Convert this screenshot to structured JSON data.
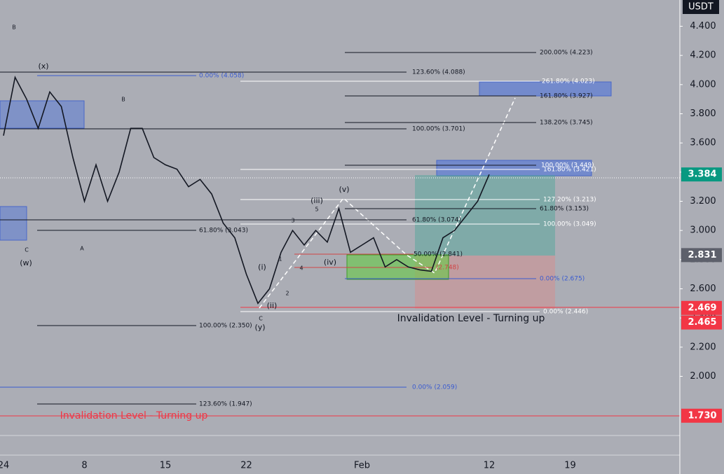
{
  "chart_data": {
    "type": "line",
    "currency": "USDT",
    "categories": [
      "24",
      null,
      null,
      null,
      null,
      null,
      null,
      "8",
      null,
      null,
      null,
      null,
      null,
      null,
      "15",
      null,
      null,
      null,
      null,
      null,
      null,
      "22",
      null,
      null,
      null,
      null,
      null,
      null,
      null,
      null,
      null,
      "Feb",
      null,
      null,
      null,
      null,
      null,
      null,
      null,
      null,
      null,
      null,
      "12",
      null,
      null,
      null,
      null,
      null,
      null,
      "19",
      null,
      null,
      null,
      null,
      null,
      null,
      null,
      null,
      null
    ],
    "series": [
      {
        "color": "#131722",
        "values": [
          3.65,
          4.05,
          3.9,
          3.7,
          3.95,
          3.85,
          3.5,
          3.2,
          3.45,
          3.2,
          3.4,
          3.7,
          3.7,
          3.5,
          3.45,
          3.42,
          3.3,
          3.35,
          3.25,
          3.05,
          2.95,
          2.7,
          2.5,
          2.6,
          2.85,
          3.0,
          2.9,
          3.0,
          2.92,
          3.15,
          2.85,
          2.9,
          2.95,
          2.75,
          2.8,
          2.75,
          2.73,
          2.72,
          2.95,
          3.0,
          3.1,
          3.2,
          3.384,
          null,
          null,
          null,
          null,
          null,
          null,
          null,
          null,
          null,
          null,
          null,
          null,
          null,
          null,
          null,
          null
        ]
      }
    ],
    "ylim": [
      1.46,
      4.58
    ],
    "yticks": [
      {
        "value": 2,
        "label": "2.000"
      },
      {
        "value": 2.2,
        "label": "2.200"
      },
      {
        "value": 2.4,
        "label": "2.400"
      },
      {
        "value": 2.6,
        "label": "2.600"
      },
      {
        "value": 2.8,
        "label": "2.800"
      },
      {
        "value": 3,
        "label": "3.000"
      },
      {
        "value": 3.2,
        "label": "3.200"
      },
      {
        "value": 3.4,
        "label": "3.400"
      },
      {
        "value": 3.6,
        "label": "3.600"
      },
      {
        "value": 3.8,
        "label": "3.800"
      },
      {
        "value": 4,
        "label": "4.000"
      },
      {
        "value": 4.2,
        "label": "4.200"
      },
      {
        "value": 4.4,
        "label": "4.400"
      }
    ],
    "price_labels": [
      {
        "value": 3.384,
        "label": "3.384",
        "color": "#089981"
      },
      {
        "value": 2.831,
        "label": "2.831",
        "color": "#5d606b"
      },
      {
        "value": 2.469,
        "label": "2.469",
        "color": "#f23645"
      },
      {
        "value": 2.465,
        "label": "2.465",
        "color": "#f23645"
      },
      {
        "value": 1.73,
        "label": "1.730",
        "color": "#f23645"
      }
    ],
    "fib_levels": [
      "200.00% (4.223)",
      "123.60% (4.088)",
      "0.00% (4.058)",
      "261.80% (4.023)",
      "161.80% (3.927)",
      "138.20% (3.745)",
      "100.00% (3.701)",
      "100.00% (3.449)",
      "161.80% (3.421)",
      "127.20% (3.213)",
      "61.80% (3.153)",
      "61.80% (3.074)",
      "100.00% (3.049)",
      "61.80% (3.043)",
      "50.00% (2.841)",
      "(2.748)",
      "0.00% (2.675)",
      "0.00% (2.446)",
      "100.00% (2.350)",
      "0.00% (2.059)",
      "123.60% (1.947)"
    ],
    "wave_labels": [
      "B",
      "(x)",
      "C",
      "(w)",
      "A",
      "B",
      "(iii)",
      "(v)",
      "5",
      "3",
      "1",
      "(i)",
      "4",
      "(iv)",
      "2",
      "(ii)",
      "C",
      "(y)"
    ],
    "invalidation_labels": [
      "Invalidation Level - Turning up",
      "Invalidation Level - Turning up"
    ]
  }
}
